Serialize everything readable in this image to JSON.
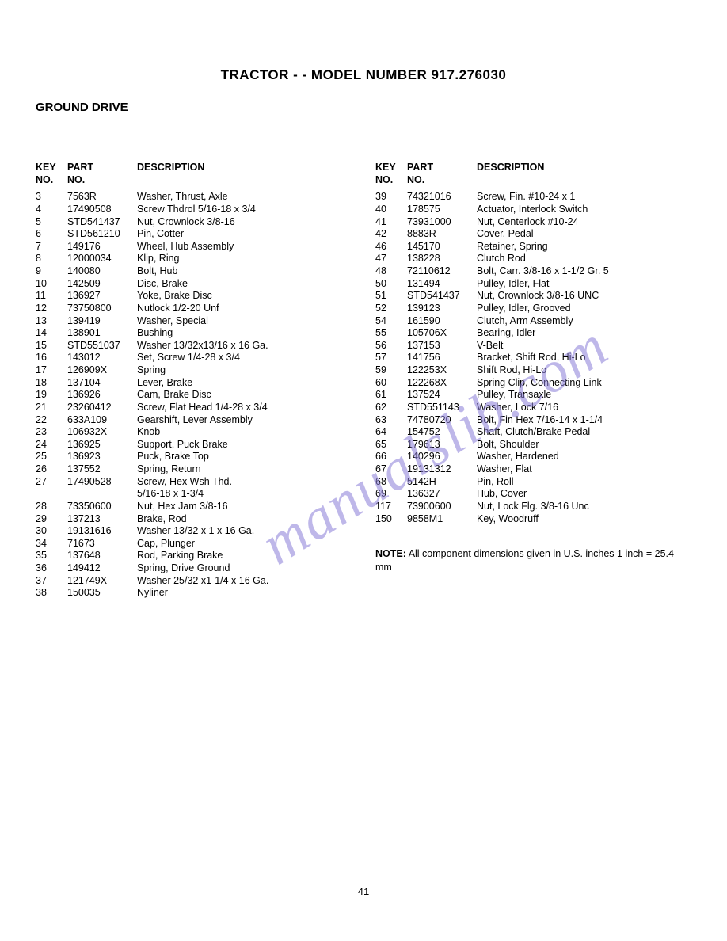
{
  "title": "TRACTOR - - MODEL NUMBER 917.276030",
  "section": "GROUND DRIVE",
  "headers": {
    "key": "KEY NO.",
    "part": "PART NO.",
    "desc": "DESCRIPTION"
  },
  "left": [
    {
      "k": "3",
      "p": "7563R",
      "d": "Washer, Thrust, Axle"
    },
    {
      "k": "4",
      "p": "17490508",
      "d": "Screw Thdrol 5/16-18 x 3/4"
    },
    {
      "k": "5",
      "p": "STD541437",
      "d": "Nut, Crownlock 3/8-16"
    },
    {
      "k": "6",
      "p": "STD561210",
      "d": "Pin, Cotter"
    },
    {
      "k": "7",
      "p": "149176",
      "d": "Wheel, Hub Assembly"
    },
    {
      "k": "8",
      "p": "12000034",
      "d": "Klip, Ring"
    },
    {
      "k": "9",
      "p": "140080",
      "d": "Bolt, Hub"
    },
    {
      "k": "10",
      "p": "142509",
      "d": "Disc, Brake"
    },
    {
      "k": "11",
      "p": "136927",
      "d": "Yoke, Brake Disc"
    },
    {
      "k": "12",
      "p": "73750800",
      "d": "Nutlock 1/2-20 Unf"
    },
    {
      "k": "13",
      "p": "139419",
      "d": "Washer, Special"
    },
    {
      "k": "14",
      "p": "138901",
      "d": "Bushing"
    },
    {
      "k": "15",
      "p": "STD551037",
      "d": "Washer 13/32x13/16 x 16 Ga."
    },
    {
      "k": "16",
      "p": "143012",
      "d": "Set, Screw 1/4-28 x 3/4"
    },
    {
      "k": "17",
      "p": "126909X",
      "d": "Spring"
    },
    {
      "k": "18",
      "p": "137104",
      "d": "Lever, Brake"
    },
    {
      "k": "19",
      "p": "136926",
      "d": "Cam, Brake Disc"
    },
    {
      "k": "21",
      "p": "23260412",
      "d": "Screw, Flat Head 1/4-28 x 3/4"
    },
    {
      "k": "22",
      "p": "633A109",
      "d": "Gearshift, Lever Assembly"
    },
    {
      "k": "23",
      "p": "106932X",
      "d": "Knob"
    },
    {
      "k": "24",
      "p": "136925",
      "d": "Support, Puck Brake"
    },
    {
      "k": "25",
      "p": "136923",
      "d": "Puck, Brake Top"
    },
    {
      "k": "26",
      "p": "137552",
      "d": "Spring, Return"
    },
    {
      "k": "27",
      "p": "17490528",
      "d": "Screw, Hex Wsh Thd."
    },
    {
      "k": "",
      "p": "",
      "d": "5/16-18 x 1-3/4"
    },
    {
      "k": "28",
      "p": "73350600",
      "d": "Nut, Hex Jam 3/8-16"
    },
    {
      "k": "29",
      "p": "137213",
      "d": "Brake, Rod"
    },
    {
      "k": "30",
      "p": "19131616",
      "d": "Washer 13/32 x 1 x 16 Ga."
    },
    {
      "k": "34",
      "p": "71673",
      "d": "Cap, Plunger"
    },
    {
      "k": "35",
      "p": "137648",
      "d": "Rod, Parking Brake"
    },
    {
      "k": "36",
      "p": "149412",
      "d": "Spring, Drive Ground"
    },
    {
      "k": "37",
      "p": "121749X",
      "d": "Washer 25/32 x1-1/4 x 16 Ga."
    },
    {
      "k": "38",
      "p": "150035",
      "d": "Nyliner"
    }
  ],
  "right": [
    {
      "k": "39",
      "p": "74321016",
      "d": "Screw, Fin. #10-24 x 1"
    },
    {
      "k": "40",
      "p": "178575",
      "d": "Actuator, Interlock Switch"
    },
    {
      "k": "41",
      "p": "73931000",
      "d": "Nut, Centerlock #10-24"
    },
    {
      "k": "42",
      "p": "8883R",
      "d": "Cover, Pedal"
    },
    {
      "k": "46",
      "p": "145170",
      "d": "Retainer, Spring"
    },
    {
      "k": "47",
      "p": "138228",
      "d": "Clutch Rod"
    },
    {
      "k": "48",
      "p": "72110612",
      "d": "Bolt, Carr. 3/8-16 x 1-1/2 Gr. 5"
    },
    {
      "k": "50",
      "p": "131494",
      "d": "Pulley, Idler, Flat"
    },
    {
      "k": "51",
      "p": "STD541437",
      "d": "Nut, Crownlock 3/8-16 UNC"
    },
    {
      "k": "52",
      "p": "139123",
      "d": "Pulley, Idler, Grooved"
    },
    {
      "k": "54",
      "p": "161590",
      "d": "Clutch, Arm Assembly"
    },
    {
      "k": "55",
      "p": "105706X",
      "d": "Bearing, Idler"
    },
    {
      "k": "56",
      "p": "137153",
      "d": "V-Belt"
    },
    {
      "k": "57",
      "p": "141756",
      "d": "Bracket, Shift Rod, Hi-Lo"
    },
    {
      "k": "59",
      "p": "122253X",
      "d": "Shift Rod, Hi-Lo"
    },
    {
      "k": "60",
      "p": "122268X",
      "d": "Spring Clip, Connecting Link"
    },
    {
      "k": "61",
      "p": "137524",
      "d": "Pulley, Transaxle"
    },
    {
      "k": "62",
      "p": "STD551143",
      "d": "Washer, Lock 7/16"
    },
    {
      "k": "63",
      "p": "74780720",
      "d": "Bolt, Fin Hex 7/16-14 x 1-1/4"
    },
    {
      "k": "64",
      "p": "154752",
      "d": "Shaft, Clutch/Brake Pedal"
    },
    {
      "k": "65",
      "p": "179613",
      "d": "Bolt, Shoulder"
    },
    {
      "k": "66",
      "p": "140296",
      "d": "Washer, Hardened"
    },
    {
      "k": "67",
      "p": "19131312",
      "d": "Washer, Flat"
    },
    {
      "k": "68",
      "p": "5142H",
      "d": "Pin, Roll"
    },
    {
      "k": "69",
      "p": "136327",
      "d": "Hub, Cover"
    },
    {
      "k": "117",
      "p": "73900600",
      "d": "Nut, Lock Flg. 3/8-16 Unc"
    },
    {
      "k": "150",
      "p": "9858M1",
      "d": "Key, Woodruff"
    }
  ],
  "note_label": "NOTE:",
  "note_text": "All component dimensions given in U.S. inches 1 inch = 25.4 mm",
  "page_number": "41",
  "watermark": "manualslib.com"
}
